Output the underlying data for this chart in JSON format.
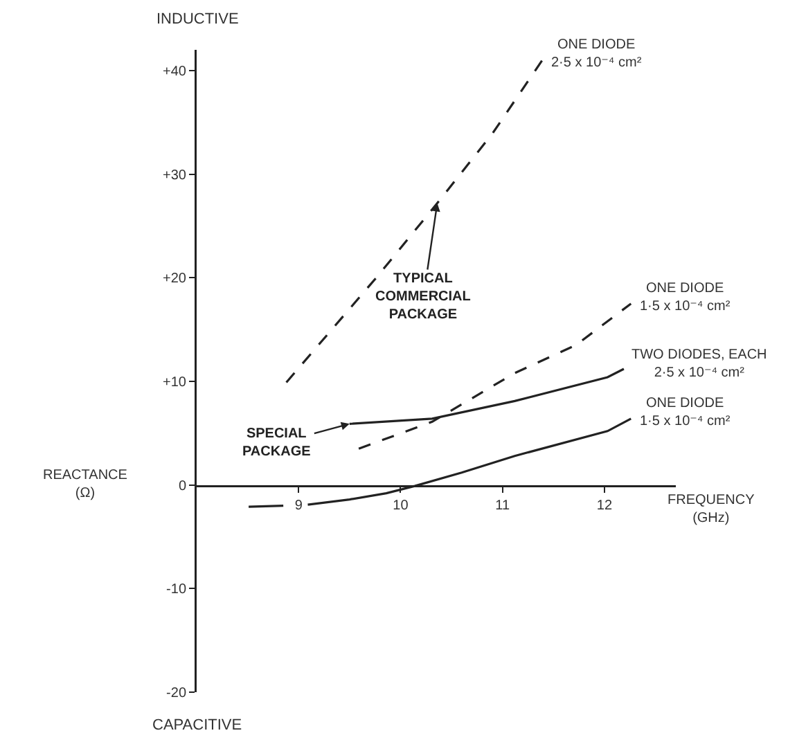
{
  "chart_data": {
    "type": "line",
    "xlabel": "FREQUENCY\n(GHz)",
    "ylabel": "REACTANCE\n(Ω)",
    "xlim": [
      8,
      12.7
    ],
    "xticks": [
      9,
      10,
      11,
      12
    ],
    "ylim": [
      -20,
      42
    ],
    "yticks": [
      {
        "value": 40,
        "label": "+40"
      },
      {
        "value": 30,
        "label": "+30"
      },
      {
        "value": 20,
        "label": "+20"
      },
      {
        "value": 10,
        "label": "+10"
      },
      0,
      -10,
      -20
    ],
    "grid": false,
    "legend": false,
    "marker": "none",
    "series": [
      {
        "name": "ONE DIODE\n2·5 x 10⁻⁴ cm²",
        "color": "#222222",
        "line_style": "dashed",
        "x": [
          8.88,
          9.77,
          10.36,
          10.9,
          11.39
        ],
        "values": [
          9.9,
          20.1,
          27.2,
          33.9,
          41
        ]
      },
      {
        "name": "ONE DIODE\n1·5 x 10⁻⁴ cm²",
        "color": "#222222",
        "line_style": "dashed",
        "x": [
          9.59,
          10.31,
          11.12,
          11.72,
          12.26
        ],
        "values": [
          3.5,
          6.1,
          10.8,
          13.5,
          17.5
        ]
      },
      {
        "name": "TWO DIODES, EACH\n2·5 x 10⁻⁴ cm²",
        "color": "#222222",
        "line_style": "solid",
        "x": [
          9.5,
          10.31,
          11.12,
          12.03,
          12.19
        ],
        "values": [
          5.9,
          6.4,
          8.1,
          10.4,
          11.2
        ]
      },
      {
        "name": "ONE DIODE\n1·5 x 10⁻⁴ cm²",
        "color": "#222222",
        "line_style": "solid",
        "x": [
          8.51,
          8.85,
          8.97,
          9.09,
          9.5,
          9.86,
          10.14,
          10.6,
          11.12,
          12.03,
          12.26
        ],
        "values": [
          -2.1,
          -2.0,
          null,
          -1.9,
          -1.4,
          -0.8,
          -0.1,
          1.2,
          2.8,
          5.2,
          6.4
        ]
      }
    ],
    "annotations": [
      "INDUCTIVE",
      "CAPACITIVE",
      {
        "text": "TYPICAL\nCOMMERCIAL\nPACKAGE",
        "x": 10.36,
        "y": 27.2
      },
      {
        "text": "SPECIAL\nPACKAGE",
        "x": 9.5,
        "y": 5.9
      }
    ]
  }
}
